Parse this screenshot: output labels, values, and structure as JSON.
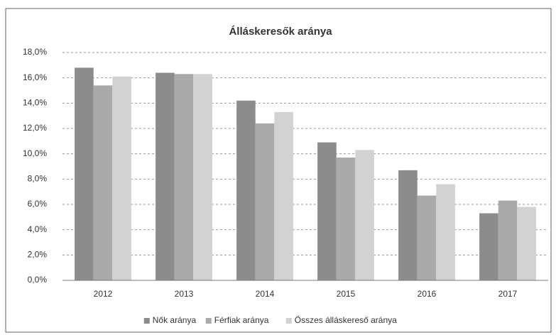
{
  "chart_data": {
    "type": "bar",
    "title": "Álláskeresők aránya",
    "categories": [
      "2012",
      "2013",
      "2014",
      "2015",
      "2016",
      "2017"
    ],
    "series": [
      {
        "name": "Nők aránya",
        "color": "#8c8c8c",
        "values": [
          16.8,
          16.4,
          14.2,
          10.9,
          8.7,
          5.3
        ]
      },
      {
        "name": "Férfiak aránya",
        "color": "#aaaaaa",
        "values": [
          15.4,
          16.3,
          12.4,
          9.7,
          6.7,
          6.3
        ]
      },
      {
        "name": "Összes álláskereső aránya",
        "color": "#d2d2d2",
        "values": [
          16.1,
          16.3,
          13.3,
          10.3,
          7.6,
          5.8
        ]
      }
    ],
    "ylim": [
      0,
      18
    ],
    "yticks": [
      {
        "value": 0,
        "label": "0,0%"
      },
      {
        "value": 2,
        "label": "2,0%"
      },
      {
        "value": 4,
        "label": "4,0%"
      },
      {
        "value": 6,
        "label": "6,0%"
      },
      {
        "value": 8,
        "label": "8,0%"
      },
      {
        "value": 10,
        "label": "10,0%"
      },
      {
        "value": 12,
        "label": "12,0%"
      },
      {
        "value": 14,
        "label": "14,0%"
      },
      {
        "value": 16,
        "label": "16,0%"
      },
      {
        "value": 18,
        "label": "18,0%"
      }
    ],
    "grid": true,
    "legend": "bottom"
  }
}
